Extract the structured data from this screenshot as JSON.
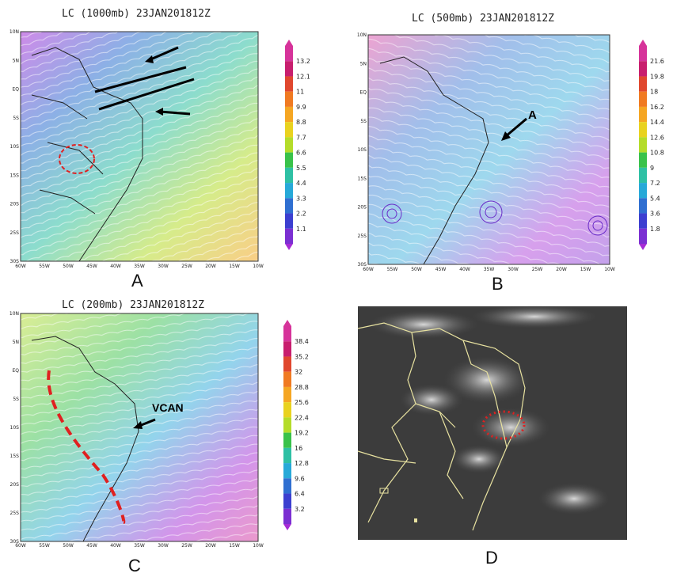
{
  "panels": {
    "a": {
      "title": "LC (1000mb) 23JAN201812Z",
      "letter": "A",
      "colorbar": [
        "13.2",
        "12.1",
        "11",
        "9.9",
        "8.8",
        "7.7",
        "6.6",
        "5.5",
        "4.4",
        "3.3",
        "2.2",
        "1.1"
      ],
      "lat_ticks": [
        "10N",
        "5N",
        "EQ",
        "5S",
        "10S",
        "15S",
        "20S",
        "25S",
        "30S"
      ],
      "lon_ticks": [
        "60W",
        "55W",
        "50W",
        "45W",
        "40W",
        "35W",
        "30W",
        "25W",
        "20W",
        "15W",
        "10W"
      ]
    },
    "b": {
      "title": "LC (500mb) 23JAN201812Z",
      "letter": "B",
      "annotation": "A",
      "colorbar": [
        "21.6",
        "19.8",
        "18",
        "16.2",
        "14.4",
        "12.6",
        "10.8",
        "9",
        "7.2",
        "5.4",
        "3.6",
        "1.8"
      ],
      "lat_ticks": [
        "10N",
        "5N",
        "EQ",
        "5S",
        "10S",
        "15S",
        "20S",
        "25S",
        "30S"
      ],
      "lon_ticks": [
        "60W",
        "55W",
        "50W",
        "45W",
        "40W",
        "35W",
        "30W",
        "25W",
        "20W",
        "15W",
        "10W"
      ]
    },
    "c": {
      "title": "LC (200mb) 23JAN201812Z",
      "letter": "C",
      "annotation": "VCAN",
      "colorbar": [
        "38.4",
        "35.2",
        "32",
        "28.8",
        "25.6",
        "22.4",
        "19.2",
        "16",
        "12.8",
        "9.6",
        "6.4",
        "3.2"
      ],
      "lat_ticks": [
        "10N",
        "5N",
        "EQ",
        "5S",
        "10S",
        "15S",
        "20S",
        "25S",
        "30S"
      ],
      "lon_ticks": [
        "60W",
        "55W",
        "50W",
        "45W",
        "40W",
        "35W",
        "30W",
        "25W",
        "20W",
        "15W",
        "10W"
      ]
    },
    "d": {
      "letter": "D"
    }
  },
  "colors": {
    "scale": [
      "#d6339a",
      "#c81e6e",
      "#e0472e",
      "#f07a22",
      "#f5a623",
      "#e9d21f",
      "#b4dc2a",
      "#39c24a",
      "#2ec0a4",
      "#27a9d8",
      "#2f6fd1",
      "#3c3fd0",
      "#7b2fd2",
      "#a62bd6"
    ],
    "highlight_red": "#e02020",
    "satellite_border": "#e8e2a0"
  }
}
